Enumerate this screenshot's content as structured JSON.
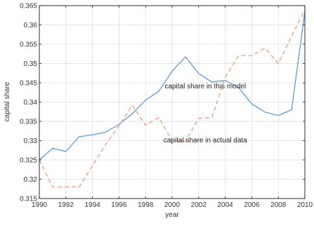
{
  "chart_data": {
    "type": "line",
    "title": "",
    "xlabel": "year",
    "ylabel": "capital share",
    "xlim": [
      1990,
      2010
    ],
    "ylim": [
      0.315,
      0.365
    ],
    "x_ticks": [
      "1990",
      "1992",
      "1994",
      "1996",
      "1998",
      "2000",
      "2002",
      "2004",
      "2006",
      "2008",
      "2010"
    ],
    "y_ticks": [
      "0.315",
      "0.32",
      "0.325",
      "0.33",
      "0.335",
      "0.34",
      "0.345",
      "0.35",
      "0.355",
      "0.36",
      "0.365"
    ],
    "grid": true,
    "x": [
      1990,
      1991,
      1992,
      1993,
      1994,
      1995,
      1996,
      1997,
      1998,
      1999,
      2000,
      2001,
      2002,
      2003,
      2004,
      2005,
      2006,
      2007,
      2008,
      2009,
      2010
    ],
    "series": [
      {
        "name": "capital share in this model",
        "color": "#5b9bd5",
        "style": "solid",
        "values": [
          0.325,
          0.328,
          0.3272,
          0.331,
          0.3315,
          0.3322,
          0.3342,
          0.337,
          0.3405,
          0.3428,
          0.348,
          0.3517,
          0.3474,
          0.3452,
          0.3456,
          0.3438,
          0.3395,
          0.3374,
          0.3365,
          0.338,
          0.3635
        ]
      },
      {
        "name": "capital share in actual data",
        "color": "#f0997a",
        "style": "dashed",
        "values": [
          0.325,
          0.318,
          0.318,
          0.318,
          0.3235,
          0.329,
          0.3338,
          0.3392,
          0.334,
          0.336,
          0.33,
          0.3298,
          0.3358,
          0.336,
          0.3465,
          0.352,
          0.352,
          0.354,
          0.35,
          0.357,
          0.364
        ]
      }
    ],
    "annotations": [
      {
        "text": "capital share in this model",
        "x": 2002.5,
        "y": 0.3442
      },
      {
        "text": "capital share in actual data",
        "x": 2002.5,
        "y": 0.3302
      }
    ]
  }
}
